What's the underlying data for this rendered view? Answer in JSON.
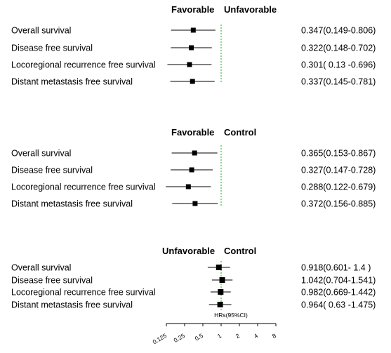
{
  "chart_data": [
    {
      "type": "forest",
      "left_header": "Favorable",
      "right_header": "Unfavorable",
      "reference": 1,
      "rows": [
        {
          "label": "Overall survival",
          "hr": 0.347,
          "lo": 0.149,
          "hi": 0.806,
          "text": "0.347(0.149-0.806)"
        },
        {
          "label": "Disease free survival",
          "hr": 0.322,
          "lo": 0.148,
          "hi": 0.702,
          "text": "0.322(0.148-0.702)"
        },
        {
          "label": "Locoregional recurrence free survival",
          "hr": 0.301,
          "lo": 0.13,
          "hi": 0.696,
          "text": "0.301( 0.13 -0.696)"
        },
        {
          "label": "Distant metastasis free survival",
          "hr": 0.337,
          "lo": 0.145,
          "hi": 0.781,
          "text": "0.337(0.145-0.781)"
        }
      ]
    },
    {
      "type": "forest",
      "left_header": "Favorable",
      "right_header": "Control",
      "reference": 1,
      "rows": [
        {
          "label": "Overall survival",
          "hr": 0.365,
          "lo": 0.153,
          "hi": 0.867,
          "text": "0.365(0.153-0.867)"
        },
        {
          "label": "Disease free survival",
          "hr": 0.327,
          "lo": 0.147,
          "hi": 0.728,
          "text": "0.327(0.147-0.728)"
        },
        {
          "label": "Locoregional recurrence free survival",
          "hr": 0.288,
          "lo": 0.122,
          "hi": 0.679,
          "text": "0.288(0.122-0.679)"
        },
        {
          "label": "Distant metastasis free survival",
          "hr": 0.372,
          "lo": 0.156,
          "hi": 0.885,
          "text": "0.372(0.156-0.885)"
        }
      ]
    },
    {
      "type": "forest",
      "left_header": "Unfavorable",
      "right_header": "Control",
      "reference": 1,
      "rows": [
        {
          "label": "Overall survival",
          "hr": 0.918,
          "lo": 0.601,
          "hi": 1.4,
          "text": "0.918(0.601-  1.4  )"
        },
        {
          "label": "Disease free survival",
          "hr": 1.042,
          "lo": 0.704,
          "hi": 1.541,
          "text": "1.042(0.704-1.541)"
        },
        {
          "label": "Locoregional recurrence free survival",
          "hr": 0.982,
          "lo": 0.669,
          "hi": 1.442,
          "text": "0.982(0.669-1.442)"
        },
        {
          "label": "Distant metastasis free survival",
          "hr": 0.964,
          "lo": 0.63,
          "hi": 1.475,
          "text": "0.964( 0.63 -1.475)"
        }
      ]
    }
  ],
  "x_axis": {
    "title": "HRs(95%CI)",
    "scale": "log2",
    "ticks": [
      0.125,
      0.25,
      0.5,
      1,
      2,
      4,
      8
    ],
    "tick_labels": [
      "0.125",
      "0.25",
      "0.5",
      "1",
      "2",
      "4",
      "8"
    ]
  },
  "colors": {
    "reference_line": "#22aa22",
    "marker": "#000000"
  }
}
